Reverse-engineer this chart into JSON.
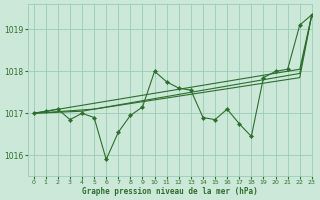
{
  "bg_color": "#cce8d8",
  "grid_color": "#99ccb8",
  "line_color": "#2d6e2d",
  "marker_color": "#2d6e2d",
  "xlabel": "Graphe pression niveau de la mer (hPa)",
  "xlim": [
    -0.5,
    23
  ],
  "ylim": [
    1015.5,
    1019.6
  ],
  "yticks": [
    1016,
    1017,
    1018,
    1019
  ],
  "xticks": [
    0,
    1,
    2,
    3,
    4,
    5,
    6,
    7,
    8,
    9,
    10,
    11,
    12,
    13,
    14,
    15,
    16,
    17,
    18,
    19,
    20,
    21,
    22,
    23
  ],
  "line_volatile": {
    "x": [
      0,
      1,
      2,
      3,
      4,
      5,
      6,
      7,
      8,
      9,
      10,
      11,
      12,
      13,
      14,
      15,
      16,
      17,
      18,
      19,
      20,
      21,
      22,
      23
    ],
    "y": [
      1017.0,
      1017.05,
      1017.1,
      1016.85,
      1017.0,
      1016.9,
      1015.9,
      1016.55,
      1016.95,
      1017.15,
      1018.0,
      1017.75,
      1017.6,
      1017.55,
      1016.9,
      1016.85,
      1017.1,
      1016.75,
      1016.45,
      1017.85,
      1018.0,
      1018.05,
      1019.1,
      1019.35
    ]
  },
  "line_trend1": {
    "x": [
      0,
      22,
      23
    ],
    "y": [
      1017.0,
      1018.05,
      1019.35
    ]
  },
  "line_trend2": {
    "x": [
      0,
      4,
      22,
      23
    ],
    "y": [
      1017.0,
      1017.05,
      1017.95,
      1019.35
    ]
  },
  "line_trend3": {
    "x": [
      0,
      5,
      22,
      23
    ],
    "y": [
      1017.0,
      1017.1,
      1017.85,
      1019.35
    ]
  }
}
